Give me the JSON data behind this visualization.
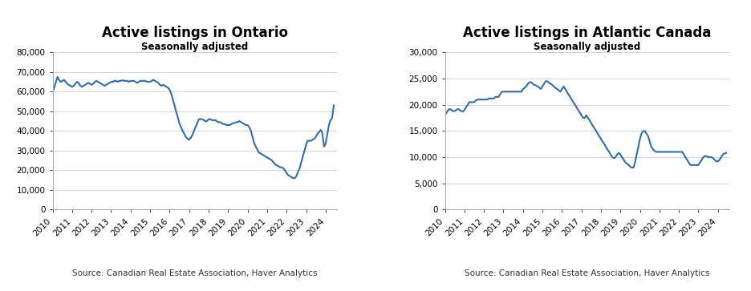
{
  "ontario": {
    "title": "Active listings in Ontario",
    "subtitle": "Seasonally adjusted",
    "source": "Source: Canadian Real Estate Association, Haver Analytics",
    "line_color": "#2E6DB4",
    "ylim": [
      0,
      80000
    ],
    "yticks": [
      0,
      10000,
      20000,
      30000,
      40000,
      50000,
      60000,
      70000,
      80000
    ],
    "x": [
      2010.0,
      2010.08,
      2010.17,
      2010.25,
      2010.33,
      2010.42,
      2010.5,
      2010.58,
      2010.67,
      2010.75,
      2010.83,
      2010.92,
      2011.0,
      2011.08,
      2011.17,
      2011.25,
      2011.33,
      2011.42,
      2011.5,
      2011.58,
      2011.67,
      2011.75,
      2011.83,
      2011.92,
      2012.0,
      2012.08,
      2012.17,
      2012.25,
      2012.33,
      2012.42,
      2012.5,
      2012.58,
      2012.67,
      2012.75,
      2012.83,
      2012.92,
      2013.0,
      2013.08,
      2013.17,
      2013.25,
      2013.33,
      2013.42,
      2013.5,
      2013.58,
      2013.67,
      2013.75,
      2013.83,
      2013.92,
      2014.0,
      2014.08,
      2014.17,
      2014.25,
      2014.33,
      2014.42,
      2014.5,
      2014.58,
      2014.67,
      2014.75,
      2014.83,
      2014.92,
      2015.0,
      2015.08,
      2015.17,
      2015.25,
      2015.33,
      2015.42,
      2015.5,
      2015.58,
      2015.67,
      2015.75,
      2015.83,
      2015.92,
      2016.0,
      2016.08,
      2016.17,
      2016.25,
      2016.33,
      2016.42,
      2016.5,
      2016.58,
      2016.67,
      2016.75,
      2016.83,
      2016.92,
      2017.0,
      2017.08,
      2017.17,
      2017.25,
      2017.33,
      2017.42,
      2017.5,
      2017.58,
      2017.67,
      2017.75,
      2017.83,
      2017.92,
      2018.0,
      2018.08,
      2018.17,
      2018.25,
      2018.33,
      2018.42,
      2018.5,
      2018.58,
      2018.67,
      2018.75,
      2018.83,
      2018.92,
      2019.0,
      2019.08,
      2019.17,
      2019.25,
      2019.33,
      2019.42,
      2019.5,
      2019.58,
      2019.67,
      2019.75,
      2019.83,
      2019.92,
      2020.0,
      2020.08,
      2020.17,
      2020.25,
      2020.33,
      2020.42,
      2020.5,
      2020.58,
      2020.67,
      2020.75,
      2020.83,
      2020.92,
      2021.0,
      2021.08,
      2021.17,
      2021.25,
      2021.33,
      2021.42,
      2021.5,
      2021.58,
      2021.67,
      2021.75,
      2021.83,
      2021.92,
      2022.0,
      2022.08,
      2022.17,
      2022.25,
      2022.33,
      2022.42,
      2022.5,
      2022.58,
      2022.67,
      2022.75,
      2022.83,
      2022.92,
      2023.0,
      2023.08,
      2023.17,
      2023.25,
      2023.33,
      2023.42,
      2023.5,
      2023.58,
      2023.67,
      2023.75,
      2023.83,
      2023.92,
      2024.0,
      2024.08,
      2024.17,
      2024.25,
      2024.33,
      2024.42
    ],
    "y": [
      60000,
      62000,
      65000,
      67500,
      66000,
      65000,
      65500,
      66000,
      65000,
      64000,
      63500,
      63000,
      62500,
      63000,
      64000,
      65000,
      64500,
      63000,
      62500,
      63000,
      63500,
      64000,
      64500,
      64000,
      63500,
      64000,
      65000,
      65500,
      65000,
      64500,
      64000,
      63500,
      63000,
      63500,
      64000,
      64500,
      65000,
      65000,
      65500,
      65500,
      65000,
      65500,
      65500,
      65800,
      65500,
      65500,
      65500,
      65000,
      65500,
      65500,
      65500,
      65000,
      64500,
      65000,
      65500,
      65500,
      65500,
      65500,
      65000,
      65000,
      65000,
      65500,
      66000,
      65500,
      65000,
      64500,
      63500,
      63000,
      63500,
      63000,
      62500,
      62000,
      61000,
      59000,
      56000,
      53000,
      50000,
      47000,
      44000,
      42000,
      40000,
      38500,
      37000,
      36000,
      35500,
      36500,
      38000,
      40000,
      42000,
      44000,
      46000,
      46000,
      46000,
      45500,
      45000,
      45000,
      46000,
      46000,
      45500,
      45500,
      45500,
      45000,
      44500,
      44500,
      44000,
      43500,
      43500,
      43000,
      43000,
      43000,
      43500,
      44000,
      44000,
      44500,
      44500,
      45000,
      44500,
      44000,
      43500,
      43000,
      43000,
      42000,
      40000,
      37000,
      34000,
      32000,
      30500,
      29000,
      28500,
      28000,
      27500,
      27000,
      26500,
      26000,
      25500,
      25000,
      24000,
      23000,
      22500,
      22000,
      21500,
      21500,
      21000,
      20000,
      18500,
      17500,
      17000,
      16500,
      16000,
      16000,
      17000,
      19000,
      21000,
      24000,
      27000,
      30000,
      33000,
      35000,
      35000,
      35000,
      35500,
      36000,
      37000,
      38500,
      39500,
      40500,
      39000,
      32000,
      33500,
      38000,
      43000,
      45500,
      46500,
      53000
    ]
  },
  "atlantic": {
    "title": "Active listings in Atlantic Canada",
    "subtitle": "Seasonally adjusted",
    "source": "Source: Canadian Real Estate Association, Haver Analytics",
    "line_color": "#2E6DB4",
    "ylim": [
      0,
      30000
    ],
    "yticks": [
      0,
      5000,
      10000,
      15000,
      20000,
      25000,
      30000
    ],
    "x": [
      2010.0,
      2010.08,
      2010.17,
      2010.25,
      2010.33,
      2010.42,
      2010.5,
      2010.58,
      2010.67,
      2010.75,
      2010.83,
      2010.92,
      2011.0,
      2011.08,
      2011.17,
      2011.25,
      2011.33,
      2011.42,
      2011.5,
      2011.58,
      2011.67,
      2011.75,
      2011.83,
      2011.92,
      2012.0,
      2012.08,
      2012.17,
      2012.25,
      2012.33,
      2012.42,
      2012.5,
      2012.58,
      2012.67,
      2012.75,
      2012.83,
      2012.92,
      2013.0,
      2013.08,
      2013.17,
      2013.25,
      2013.33,
      2013.42,
      2013.5,
      2013.58,
      2013.67,
      2013.75,
      2013.83,
      2013.92,
      2014.0,
      2014.08,
      2014.17,
      2014.25,
      2014.33,
      2014.42,
      2014.5,
      2014.58,
      2014.67,
      2014.75,
      2014.83,
      2014.92,
      2015.0,
      2015.08,
      2015.17,
      2015.25,
      2015.33,
      2015.42,
      2015.5,
      2015.58,
      2015.67,
      2015.75,
      2015.83,
      2015.92,
      2016.0,
      2016.08,
      2016.17,
      2016.25,
      2016.33,
      2016.42,
      2016.5,
      2016.58,
      2016.67,
      2016.75,
      2016.83,
      2016.92,
      2017.0,
      2017.08,
      2017.17,
      2017.25,
      2017.33,
      2017.42,
      2017.5,
      2017.58,
      2017.67,
      2017.75,
      2017.83,
      2017.92,
      2018.0,
      2018.08,
      2018.17,
      2018.25,
      2018.33,
      2018.42,
      2018.5,
      2018.58,
      2018.67,
      2018.75,
      2018.83,
      2018.92,
      2019.0,
      2019.08,
      2019.17,
      2019.25,
      2019.33,
      2019.42,
      2019.5,
      2019.58,
      2019.67,
      2019.75,
      2019.83,
      2019.92,
      2020.0,
      2020.08,
      2020.17,
      2020.25,
      2020.33,
      2020.42,
      2020.5,
      2020.58,
      2020.67,
      2020.75,
      2020.83,
      2020.92,
      2021.0,
      2021.08,
      2021.17,
      2021.25,
      2021.33,
      2021.42,
      2021.5,
      2021.58,
      2021.67,
      2021.75,
      2021.83,
      2021.92,
      2022.0,
      2022.08,
      2022.17,
      2022.25,
      2022.33,
      2022.42,
      2022.5,
      2022.58,
      2022.67,
      2022.75,
      2022.83,
      2022.92,
      2023.0,
      2023.08,
      2023.17,
      2023.25,
      2023.33,
      2023.42,
      2023.5,
      2023.58,
      2023.67,
      2023.75,
      2023.83,
      2023.92,
      2024.0,
      2024.08,
      2024.17,
      2024.25,
      2024.33,
      2024.42
    ],
    "y": [
      18000,
      18500,
      19000,
      19200,
      19000,
      18800,
      18800,
      19000,
      19200,
      19000,
      18800,
      18700,
      19000,
      19500,
      20000,
      20500,
      20500,
      20500,
      20500,
      20800,
      21000,
      21000,
      21000,
      21000,
      21000,
      21000,
      21000,
      21200,
      21200,
      21200,
      21200,
      21500,
      21500,
      21500,
      22000,
      22500,
      22500,
      22500,
      22500,
      22500,
      22500,
      22500,
      22500,
      22500,
      22500,
      22500,
      22500,
      22500,
      23000,
      23200,
      23500,
      24000,
      24300,
      24300,
      24000,
      23800,
      23700,
      23500,
      23300,
      23000,
      23500,
      24000,
      24500,
      24500,
      24200,
      24000,
      23800,
      23500,
      23200,
      23000,
      22800,
      22500,
      23000,
      23500,
      23000,
      22500,
      22000,
      21500,
      21000,
      20500,
      20000,
      19500,
      19000,
      18500,
      18000,
      17500,
      17500,
      18000,
      17500,
      17000,
      16500,
      16000,
      15500,
      15000,
      14500,
      14000,
      13500,
      13000,
      12500,
      12000,
      11500,
      11000,
      10500,
      10000,
      9800,
      10000,
      10500,
      10800,
      10500,
      10000,
      9500,
      9000,
      8800,
      8500,
      8200,
      8000,
      8000,
      9000,
      10500,
      12000,
      13500,
      14500,
      15000,
      15000,
      14500,
      14000,
      13000,
      12000,
      11500,
      11200,
      11000,
      11000,
      11000,
      11000,
      11000,
      11000,
      11000,
      11000,
      11000,
      11000,
      11000,
      11000,
      11000,
      11000,
      11000,
      11000,
      11000,
      10500,
      10000,
      9500,
      9000,
      8500,
      8500,
      8500,
      8500,
      8500,
      8500,
      9000,
      9500,
      10000,
      10200,
      10200,
      10000,
      10000,
      10000,
      9800,
      9500,
      9200,
      9200,
      9500,
      10000,
      10500,
      10700,
      10800
    ]
  },
  "background_color": "#FFFFFF",
  "plot_bg_color": "#FFFFFF",
  "grid_color": "#CCCCCC",
  "xtick_years": [
    2010,
    2011,
    2012,
    2013,
    2014,
    2015,
    2016,
    2017,
    2018,
    2019,
    2020,
    2021,
    2022,
    2023,
    2024
  ],
  "line_width": 1.5,
  "title_fontsize": 12,
  "subtitle_fontsize": 8.5,
  "tick_fontsize": 7.5,
  "source_fontsize": 7.5
}
